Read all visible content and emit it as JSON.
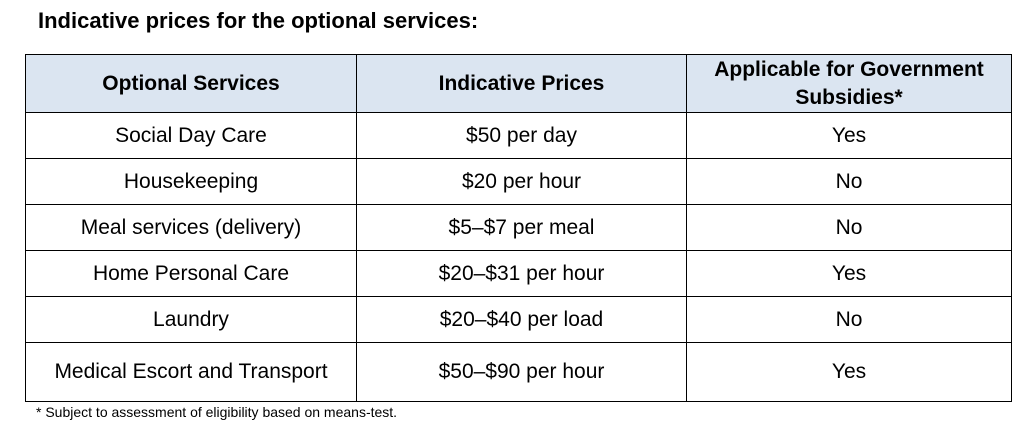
{
  "heading": "Indicative prices for the optional services:",
  "table": {
    "headers": [
      "Optional Services",
      "Indicative Prices",
      "Applicable for Government Subsidies*"
    ],
    "rows": [
      [
        "Social Day Care",
        "$50 per day",
        "Yes"
      ],
      [
        "Housekeeping",
        "$20 per hour",
        "No"
      ],
      [
        "Meal services (delivery)",
        "$5–$7 per meal",
        "No"
      ],
      [
        "Home Personal Care",
        "$20–$31 per hour",
        "Yes"
      ],
      [
        "Laundry",
        "$20–$40 per load",
        "No"
      ],
      [
        "Medical Escort and Transport",
        "$50–$90 per hour",
        "Yes"
      ]
    ]
  },
  "footnote": "* Subject to assessment of eligibility based on means-test.",
  "colors": {
    "header_background": "#dbe5f1",
    "border": "#000000",
    "text": "#000000"
  }
}
